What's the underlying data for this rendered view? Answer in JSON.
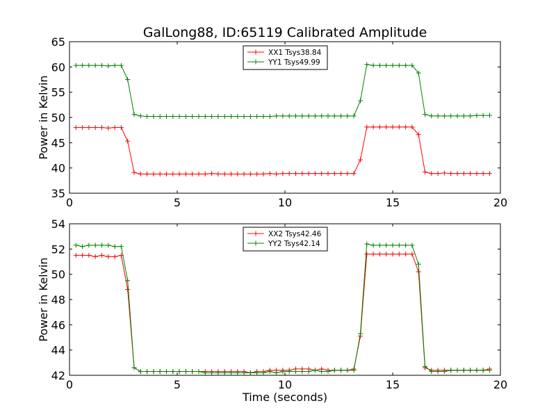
{
  "figure": {
    "title": "GalLong88, ID:65119 Calibrated Amplitude"
  },
  "chart_data": [
    {
      "type": "line",
      "title": "GalLong88, ID:65119 Calibrated Amplitude",
      "xlabel": "",
      "ylabel": "Power in Kelvin",
      "xlim": [
        0,
        20
      ],
      "ylim": [
        35,
        65
      ],
      "xticks": [
        0,
        5,
        10,
        15,
        20
      ],
      "yticks": [
        35,
        40,
        45,
        50,
        55,
        60,
        65
      ],
      "grid": false,
      "legend_position": "top-center",
      "x": [
        0.3,
        0.6,
        0.9,
        1.2,
        1.5,
        1.8,
        2.1,
        2.4,
        2.7,
        3.0,
        3.3,
        3.6,
        3.9,
        4.2,
        4.5,
        4.8,
        5.1,
        5.4,
        5.7,
        6.0,
        6.3,
        6.6,
        6.9,
        7.2,
        7.5,
        7.8,
        8.1,
        8.4,
        8.7,
        9.0,
        9.3,
        9.6,
        9.9,
        10.2,
        10.5,
        10.8,
        11.1,
        11.4,
        11.7,
        12.0,
        12.3,
        12.6,
        12.9,
        13.2,
        13.5,
        13.8,
        14.1,
        14.4,
        14.7,
        15.0,
        15.3,
        15.6,
        15.9,
        16.2,
        16.5,
        16.8,
        17.1,
        17.4,
        17.7,
        18.0,
        18.3,
        18.6,
        18.9,
        19.2,
        19.5
      ],
      "series": [
        {
          "name": "XX1 Tsys38.84",
          "color": "#ff0000",
          "values": [
            48.0,
            48.0,
            48.0,
            48.0,
            48.0,
            47.9,
            48.0,
            48.0,
            45.3,
            39.1,
            38.8,
            38.8,
            38.8,
            38.8,
            38.8,
            38.8,
            38.8,
            38.8,
            38.8,
            38.8,
            38.8,
            38.9,
            38.8,
            38.8,
            38.8,
            38.8,
            38.8,
            38.8,
            38.8,
            38.8,
            38.9,
            38.8,
            38.9,
            38.9,
            38.9,
            38.9,
            38.9,
            38.9,
            38.9,
            38.9,
            38.9,
            38.9,
            38.9,
            38.9,
            41.6,
            48.1,
            48.1,
            48.1,
            48.1,
            48.1,
            48.1,
            48.1,
            48.1,
            46.6,
            39.2,
            38.9,
            38.9,
            39.0,
            38.9,
            38.9,
            38.9,
            38.9,
            38.9,
            38.9,
            38.9
          ]
        },
        {
          "name": "YY1 Tsys49.99",
          "color": "#008000",
          "values": [
            60.3,
            60.3,
            60.3,
            60.3,
            60.3,
            60.2,
            60.3,
            60.3,
            57.5,
            50.6,
            50.3,
            50.2,
            50.2,
            50.2,
            50.2,
            50.2,
            50.2,
            50.2,
            50.2,
            50.2,
            50.2,
            50.2,
            50.2,
            50.2,
            50.2,
            50.2,
            50.2,
            50.2,
            50.2,
            50.2,
            50.2,
            50.3,
            50.3,
            50.3,
            50.3,
            50.3,
            50.3,
            50.3,
            50.3,
            50.3,
            50.3,
            50.3,
            50.3,
            50.3,
            53.3,
            60.5,
            60.3,
            60.3,
            60.3,
            60.3,
            60.3,
            60.3,
            60.3,
            58.8,
            50.6,
            50.3,
            50.3,
            50.3,
            50.3,
            50.3,
            50.3,
            50.3,
            50.4,
            50.4,
            50.4
          ]
        }
      ]
    },
    {
      "type": "line",
      "title": "",
      "xlabel": "Time (seconds)",
      "ylabel": "Power in Kelvin",
      "xlim": [
        0,
        20
      ],
      "ylim": [
        42,
        54
      ],
      "xticks": [
        0,
        5,
        10,
        15,
        20
      ],
      "yticks": [
        42,
        44,
        46,
        48,
        50,
        52,
        54
      ],
      "grid": false,
      "legend_position": "top-center",
      "x": [
        0.3,
        0.6,
        0.9,
        1.2,
        1.5,
        1.8,
        2.1,
        2.4,
        2.7,
        3.0,
        3.3,
        3.6,
        3.9,
        4.2,
        4.5,
        4.8,
        5.1,
        5.4,
        5.7,
        6.0,
        6.3,
        6.6,
        6.9,
        7.2,
        7.5,
        7.8,
        8.1,
        8.4,
        8.7,
        9.0,
        9.3,
        9.6,
        9.9,
        10.2,
        10.5,
        10.8,
        11.1,
        11.4,
        11.7,
        12.0,
        12.3,
        12.6,
        12.9,
        13.2,
        13.5,
        13.8,
        14.1,
        14.4,
        14.7,
        15.0,
        15.3,
        15.6,
        15.9,
        16.2,
        16.5,
        16.8,
        17.1,
        17.4,
        17.7,
        18.0,
        18.3,
        18.6,
        18.9,
        19.2,
        19.5
      ],
      "series": [
        {
          "name": "XX2 Tsys42.46",
          "color": "#ff0000",
          "values": [
            51.5,
            51.5,
            51.5,
            51.4,
            51.5,
            51.4,
            51.4,
            51.5,
            48.8,
            42.6,
            42.3,
            42.3,
            42.3,
            42.3,
            42.3,
            42.3,
            42.3,
            42.3,
            42.3,
            42.3,
            42.3,
            42.3,
            42.3,
            42.3,
            42.3,
            42.3,
            42.3,
            42.2,
            42.3,
            42.3,
            42.4,
            42.4,
            42.4,
            42.4,
            42.5,
            42.5,
            42.5,
            42.4,
            42.5,
            42.4,
            42.4,
            42.4,
            42.4,
            42.5,
            45.1,
            51.6,
            51.6,
            51.6,
            51.6,
            51.6,
            51.6,
            51.6,
            51.6,
            50.2,
            42.6,
            42.4,
            42.4,
            42.4,
            42.4,
            42.4,
            42.4,
            42.4,
            42.4,
            42.4,
            42.5
          ]
        },
        {
          "name": "YY2 Tsys42.14",
          "color": "#008000",
          "values": [
            52.3,
            52.2,
            52.3,
            52.3,
            52.3,
            52.3,
            52.2,
            52.2,
            49.5,
            42.6,
            42.3,
            42.3,
            42.3,
            42.3,
            42.3,
            42.3,
            42.3,
            42.3,
            42.3,
            42.3,
            42.2,
            42.2,
            42.2,
            42.2,
            42.2,
            42.2,
            42.2,
            42.2,
            42.2,
            42.2,
            42.3,
            42.2,
            42.3,
            42.3,
            42.3,
            42.3,
            42.3,
            42.4,
            42.3,
            42.3,
            42.4,
            42.4,
            42.4,
            42.4,
            45.3,
            52.4,
            52.3,
            52.3,
            52.3,
            52.3,
            52.3,
            52.3,
            52.3,
            50.8,
            42.7,
            42.3,
            42.3,
            42.3,
            42.4,
            42.4,
            42.4,
            42.4,
            42.4,
            42.4,
            42.4
          ]
        }
      ]
    }
  ]
}
